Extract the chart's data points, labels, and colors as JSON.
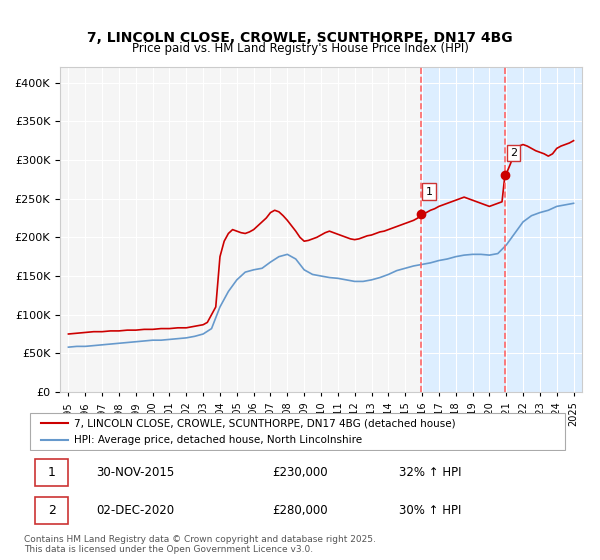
{
  "title": "7, LINCOLN CLOSE, CROWLE, SCUNTHORPE, DN17 4BG",
  "subtitle": "Price paid vs. HM Land Registry's House Price Index (HPI)",
  "legend_line1": "7, LINCOLN CLOSE, CROWLE, SCUNTHORPE, DN17 4BG (detached house)",
  "legend_line2": "HPI: Average price, detached house, North Lincolnshire",
  "footer": "Contains HM Land Registry data © Crown copyright and database right 2025.\nThis data is licensed under the Open Government Licence v3.0.",
  "sale1_label": "1",
  "sale1_date": "30-NOV-2015",
  "sale1_price": "£230,000",
  "sale1_hpi": "32% ↑ HPI",
  "sale2_label": "2",
  "sale2_date": "02-DEC-2020",
  "sale2_price": "£280,000",
  "sale2_hpi": "30% ↑ HPI",
  "red_color": "#cc0000",
  "blue_color": "#6699cc",
  "vline_color": "#ff6666",
  "shade_color": "#ddeeff",
  "bg_color": "#f5f5f5",
  "ylim": [
    0,
    420000
  ],
  "xlim_start": 1994.5,
  "xlim_end": 2025.5,
  "sale1_x": 2015.92,
  "sale2_x": 2020.92,
  "sale1_y": 230000,
  "sale2_y": 280000,
  "red_x": [
    1995.0,
    1995.5,
    1996.0,
    1996.5,
    1997.0,
    1997.5,
    1998.0,
    1998.5,
    1999.0,
    1999.5,
    2000.0,
    2000.5,
    2001.0,
    2001.5,
    2002.0,
    2002.5,
    2003.0,
    2003.25,
    2003.5,
    2003.75,
    2004.0,
    2004.25,
    2004.5,
    2004.75,
    2005.0,
    2005.25,
    2005.5,
    2005.75,
    2006.0,
    2006.25,
    2006.5,
    2006.75,
    2007.0,
    2007.25,
    2007.5,
    2007.75,
    2008.0,
    2008.25,
    2008.5,
    2008.75,
    2009.0,
    2009.25,
    2009.5,
    2009.75,
    2010.0,
    2010.25,
    2010.5,
    2010.75,
    2011.0,
    2011.25,
    2011.5,
    2011.75,
    2012.0,
    2012.25,
    2012.5,
    2012.75,
    2013.0,
    2013.25,
    2013.5,
    2013.75,
    2014.0,
    2014.25,
    2014.5,
    2014.75,
    2015.0,
    2015.25,
    2015.5,
    2015.75,
    2015.92,
    2016.0,
    2016.25,
    2016.5,
    2016.75,
    2017.0,
    2017.25,
    2017.5,
    2017.75,
    2018.0,
    2018.25,
    2018.5,
    2018.75,
    2019.0,
    2019.25,
    2019.5,
    2019.75,
    2020.0,
    2020.25,
    2020.5,
    2020.75,
    2020.92,
    2021.0,
    2021.25,
    2021.5,
    2021.75,
    2022.0,
    2022.25,
    2022.5,
    2022.75,
    2023.0,
    2023.25,
    2023.5,
    2023.75,
    2024.0,
    2024.25,
    2024.5,
    2024.75,
    2025.0
  ],
  "red_y": [
    75000,
    76000,
    77000,
    78000,
    78000,
    79000,
    79000,
    80000,
    80000,
    81000,
    81000,
    82000,
    82000,
    83000,
    83000,
    85000,
    87000,
    90000,
    100000,
    110000,
    175000,
    195000,
    205000,
    210000,
    208000,
    206000,
    205000,
    207000,
    210000,
    215000,
    220000,
    225000,
    232000,
    235000,
    233000,
    228000,
    222000,
    215000,
    208000,
    200000,
    195000,
    196000,
    198000,
    200000,
    203000,
    206000,
    208000,
    206000,
    204000,
    202000,
    200000,
    198000,
    197000,
    198000,
    200000,
    202000,
    203000,
    205000,
    207000,
    208000,
    210000,
    212000,
    214000,
    216000,
    218000,
    220000,
    222000,
    225000,
    230000,
    230000,
    232000,
    235000,
    237000,
    240000,
    242000,
    244000,
    246000,
    248000,
    250000,
    252000,
    250000,
    248000,
    246000,
    244000,
    242000,
    240000,
    242000,
    244000,
    246000,
    280000,
    282000,
    295000,
    310000,
    318000,
    320000,
    318000,
    315000,
    312000,
    310000,
    308000,
    305000,
    308000,
    315000,
    318000,
    320000,
    322000,
    325000
  ],
  "blue_x": [
    1995.0,
    1995.5,
    1996.0,
    1996.5,
    1997.0,
    1997.5,
    1998.0,
    1998.5,
    1999.0,
    1999.5,
    2000.0,
    2000.5,
    2001.0,
    2001.5,
    2002.0,
    2002.5,
    2003.0,
    2003.5,
    2004.0,
    2004.5,
    2005.0,
    2005.5,
    2006.0,
    2006.5,
    2007.0,
    2007.5,
    2008.0,
    2008.5,
    2009.0,
    2009.5,
    2010.0,
    2010.5,
    2011.0,
    2011.5,
    2012.0,
    2012.5,
    2013.0,
    2013.5,
    2014.0,
    2014.5,
    2015.0,
    2015.5,
    2016.0,
    2016.5,
    2017.0,
    2017.5,
    2018.0,
    2018.5,
    2019.0,
    2019.5,
    2020.0,
    2020.5,
    2021.0,
    2021.5,
    2022.0,
    2022.5,
    2023.0,
    2023.5,
    2024.0,
    2024.5,
    2025.0
  ],
  "blue_y": [
    58000,
    59000,
    59000,
    60000,
    61000,
    62000,
    63000,
    64000,
    65000,
    66000,
    67000,
    67000,
    68000,
    69000,
    70000,
    72000,
    75000,
    82000,
    110000,
    130000,
    145000,
    155000,
    158000,
    160000,
    168000,
    175000,
    178000,
    172000,
    158000,
    152000,
    150000,
    148000,
    147000,
    145000,
    143000,
    143000,
    145000,
    148000,
    152000,
    157000,
    160000,
    163000,
    165000,
    167000,
    170000,
    172000,
    175000,
    177000,
    178000,
    178000,
    177000,
    179000,
    190000,
    205000,
    220000,
    228000,
    232000,
    235000,
    240000,
    242000,
    244000
  ]
}
